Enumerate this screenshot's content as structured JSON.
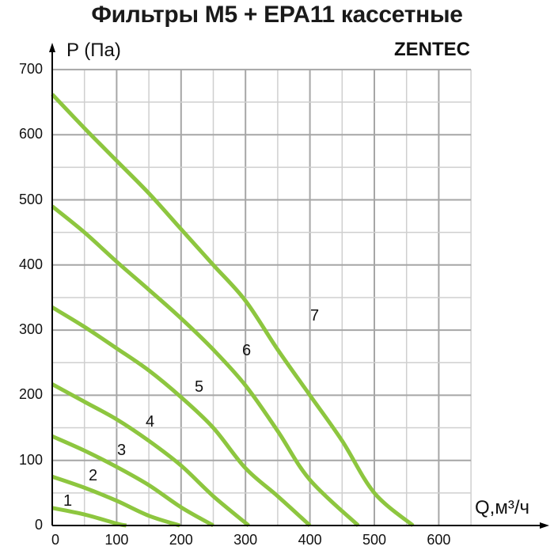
{
  "header": {
    "title": "Фильтры M5 + EPA11 кассетные",
    "brand": "ZENTEC"
  },
  "axes": {
    "ylabel": "P (Па)",
    "xlabel": "Q,м³/ч",
    "yticks": [
      "0",
      "100",
      "200",
      "300",
      "400",
      "500",
      "600",
      "700"
    ],
    "xticks": [
      "0",
      "100",
      "200",
      "300",
      "400",
      "500",
      "600"
    ]
  },
  "colors": {
    "curve": "#8dc63f",
    "grid_major": "#a6a6a6",
    "grid_minor": "#cfcfcf",
    "axis": "#000000"
  },
  "curve_labels": [
    "1",
    "2",
    "3",
    "4",
    "5",
    "6",
    "7"
  ],
  "chart_data": {
    "type": "line",
    "title": "Фильтры M5 + EPA11 кассетные",
    "xlabel": "Q, м³/ч",
    "ylabel": "P (Па)",
    "xlim": [
      0,
      650
    ],
    "ylim": [
      0,
      700
    ],
    "grid": true,
    "legend": "inline curve numbers",
    "series": [
      {
        "name": "1",
        "x": [
          0,
          50,
          100,
          115
        ],
        "y": [
          27,
          17,
          3,
          0
        ]
      },
      {
        "name": "2",
        "x": [
          0,
          50,
          100,
          150,
          198
        ],
        "y": [
          75,
          58,
          38,
          15,
          0
        ]
      },
      {
        "name": "3",
        "x": [
          0,
          50,
          100,
          150,
          200,
          250
        ],
        "y": [
          137,
          115,
          90,
          62,
          28,
          0
        ]
      },
      {
        "name": "4",
        "x": [
          0,
          50,
          100,
          150,
          200,
          250,
          305
        ],
        "y": [
          217,
          190,
          163,
          130,
          92,
          45,
          0
        ]
      },
      {
        "name": "5",
        "x": [
          0,
          50,
          100,
          150,
          200,
          250,
          300,
          350,
          400
        ],
        "y": [
          335,
          305,
          272,
          238,
          197,
          150,
          88,
          45,
          0
        ]
      },
      {
        "name": "6",
        "x": [
          0,
          50,
          100,
          150,
          200,
          250,
          300,
          350,
          400,
          475
        ],
        "y": [
          490,
          450,
          405,
          362,
          318,
          270,
          215,
          145,
          70,
          0
        ]
      },
      {
        "name": "7",
        "x": [
          0,
          50,
          100,
          150,
          200,
          250,
          300,
          350,
          400,
          450,
          500,
          560
        ],
        "y": [
          662,
          610,
          560,
          510,
          455,
          400,
          345,
          270,
          200,
          130,
          50,
          0
        ]
      }
    ]
  }
}
